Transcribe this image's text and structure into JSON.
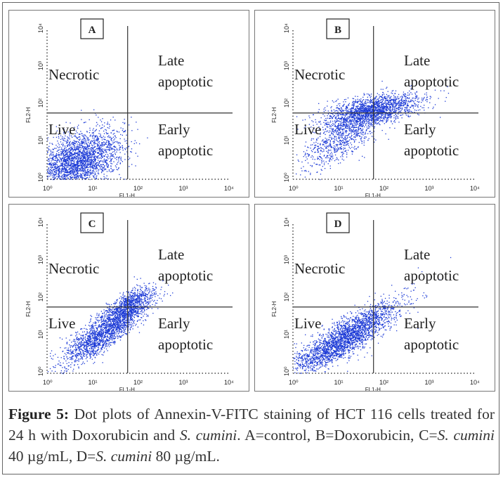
{
  "colors": {
    "dots": "#1d3bd6",
    "axes": "#444444",
    "frame": "#777777",
    "quad_lines": "#333333"
  },
  "caption": {
    "label": "Figure 5:",
    "part1": " Dot plots of Annexin-V-FITC staining of HCT 116 cells treated for 24 h with Doxorubicin and ",
    "species1": "S. cumini",
    "part2": ". A=control, B=Doxorubicin, C=",
    "species2": "S. cumini",
    "part3": " 40 µg/mL, D=",
    "species3": "S. cumini",
    "part4": " 80 µg/mL."
  },
  "chart_data": [
    {
      "type": "scatter",
      "panel_label": "A",
      "xlabel": "FL1-H",
      "ylabel": "FL2-H",
      "xscale": "log",
      "yscale": "log",
      "xlim": [
        1,
        10000
      ],
      "ylim": [
        1,
        10000
      ],
      "x_ticks": [
        "10⁰",
        "10¹",
        "10²",
        "10³",
        "10⁴"
      ],
      "y_ticks": [
        "10⁰",
        "10¹",
        "10²",
        "10³",
        "10⁴"
      ],
      "quadrant_gate": {
        "x": 60,
        "y": 60
      },
      "quadrants": {
        "upper_left": "Necrotic",
        "upper_right_1": "Late",
        "upper_right_2": "apoptotic",
        "lower_left": "Live",
        "lower_right_1": "Early",
        "lower_right_2": "apoptotic"
      },
      "population": {
        "center_log": [
          0.6,
          0.5
        ],
        "note": "dense cluster concentrated in lower-left (Live) quadrant"
      }
    },
    {
      "type": "scatter",
      "panel_label": "B",
      "xlabel": "FL1-H",
      "ylabel": "FL2-H",
      "xscale": "log",
      "yscale": "log",
      "xlim": [
        1,
        10000
      ],
      "ylim": [
        1,
        10000
      ],
      "x_ticks": [
        "10⁰",
        "10¹",
        "10²",
        "10³",
        "10⁴"
      ],
      "y_ticks": [
        "10⁰",
        "10¹",
        "10²",
        "10³",
        "10⁴"
      ],
      "quadrant_gate": {
        "x": 60,
        "y": 60
      },
      "quadrants": {
        "upper_left": "Necrotic",
        "upper_right_1": "Late",
        "upper_right_2": "apoptotic",
        "lower_left": "Live",
        "lower_right_1": "Early",
        "lower_right_2": "apoptotic"
      },
      "population": {
        "center_log": [
          1.8,
          1.8
        ],
        "note": "dense cluster centered on quadrant gate, spreading into Late apoptotic quadrant"
      }
    },
    {
      "type": "scatter",
      "panel_label": "C",
      "xlabel": "FL1-H",
      "ylabel": "FL2-H",
      "xscale": "log",
      "yscale": "log",
      "xlim": [
        1,
        10000
      ],
      "ylim": [
        1,
        10000
      ],
      "x_ticks": [
        "10⁰",
        "10¹",
        "10²",
        "10³",
        "10⁴"
      ],
      "y_ticks": [
        "10⁰",
        "10¹",
        "10²",
        "10³",
        "10⁴"
      ],
      "quadrant_gate": {
        "x": 60,
        "y": 60
      },
      "quadrants": {
        "upper_left": "Necrotic",
        "upper_right_1": "Late",
        "upper_right_2": "apoptotic",
        "lower_left": "Live",
        "lower_right_1": "Early",
        "lower_right_2": "apoptotic"
      },
      "population": {
        "center_log": [
          1.2,
          1.1
        ],
        "note": "diagonal population from Live quadrant toward gate"
      }
    },
    {
      "type": "scatter",
      "panel_label": "D",
      "xlabel": "FL1-H",
      "ylabel": "FL2-H",
      "xscale": "log",
      "yscale": "log",
      "xlim": [
        1,
        10000
      ],
      "ylim": [
        1,
        10000
      ],
      "x_ticks": [
        "10⁰",
        "10¹",
        "10²",
        "10³",
        "10⁴"
      ],
      "y_ticks": [
        "10⁰",
        "10¹",
        "10²",
        "10³",
        "10⁴"
      ],
      "quadrant_gate": {
        "x": 60,
        "y": 60
      },
      "quadrants": {
        "upper_left": "Necrotic",
        "upper_right_1": "Late",
        "upper_right_2": "apoptotic",
        "lower_left": "Live",
        "lower_right_1": "Early",
        "lower_right_2": "apoptotic"
      },
      "population": {
        "center_log": [
          1.1,
          0.9
        ],
        "note": "broad diagonal population in Live and Early apoptotic quadrants"
      }
    }
  ]
}
